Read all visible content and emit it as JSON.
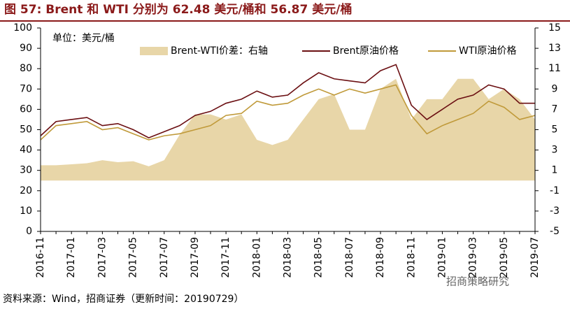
{
  "chart_data": {
    "type": "line",
    "title": "图 57:    Brent 和 WTI  分别为 62.48 美元/桶和 56.87 美元/桶",
    "unit_label": "单位：美元/桶",
    "categories": [
      "2016-11",
      null,
      "2017-01",
      null,
      "2017-03",
      null,
      "2017-05",
      null,
      "2017-07",
      null,
      "2017-09",
      null,
      "2017-11",
      null,
      "2018-01",
      null,
      "2018-03",
      null,
      "2018-05",
      null,
      "2018-07",
      null,
      "2018-09",
      null,
      "2018-11",
      null,
      "2019-01",
      null,
      "2019-03",
      null,
      "2019-05",
      null,
      "2019-07"
    ],
    "series": [
      {
        "name": "Brent-WTI价差：右轴",
        "type": "area",
        "axis": "y2",
        "color": "#e8d6a8",
        "values": [
          1.5,
          1.5,
          1.6,
          1.7,
          2,
          1.8,
          1.9,
          1.4,
          2,
          4.5,
          6.5,
          6.5,
          6,
          6.5,
          4,
          3.5,
          4,
          6,
          8,
          8.5,
          5,
          5,
          9,
          10,
          6,
          8,
          8,
          10,
          10,
          8,
          9,
          8,
          6
        ]
      },
      {
        "name": "Brent原油价格",
        "type": "line",
        "color": "#6b0f12",
        "values": [
          47,
          54,
          55,
          56,
          52,
          53,
          50,
          46,
          49,
          52,
          57,
          59,
          63,
          65,
          69,
          66,
          67,
          73,
          78,
          75,
          74,
          73,
          79,
          82,
          62,
          55,
          60,
          65,
          67,
          72,
          70,
          63,
          63
        ]
      },
      {
        "name": "WTI原油价格",
        "type": "line",
        "color": "#c09a3a",
        "values": [
          45,
          52,
          53,
          54,
          50,
          51,
          48,
          45,
          47,
          48,
          50,
          52,
          57,
          58,
          64,
          62,
          63,
          67,
          70,
          67,
          70,
          68,
          70,
          72,
          57,
          48,
          52,
          55,
          58,
          64,
          61,
          55,
          57
        ]
      }
    ],
    "ylim": [
      0,
      100
    ],
    "yticks": [
      0,
      10,
      20,
      30,
      40,
      50,
      60,
      70,
      80,
      90,
      100
    ],
    "y2lim": [
      -5,
      15
    ],
    "y2ticks": [
      -5,
      -3,
      -1,
      1,
      3,
      5,
      7,
      9,
      11,
      13,
      15
    ]
  },
  "source": "资料来源：Wind，招商证券（更新时间：20190729）",
  "watermark": "招商策略研究"
}
